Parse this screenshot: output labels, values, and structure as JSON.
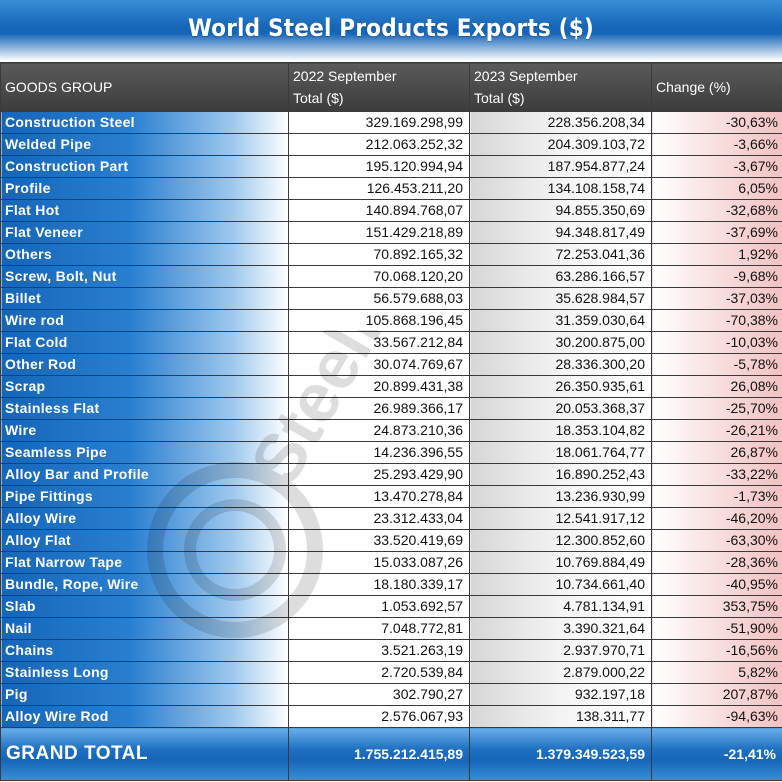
{
  "title": "World Steel Products Exports ($)",
  "header": {
    "goods": "GOODS GROUP",
    "col2_line1": "2022 September",
    "col2_line2": "Total ($)",
    "col3_line1": "2023 September",
    "col3_line2": "Total ($)",
    "change": "Change (%)"
  },
  "rows": [
    {
      "name": "Construction Steel",
      "v2022": "329.169.298,99",
      "v2023": "228.356.208,34",
      "change": "-30,63%"
    },
    {
      "name": "Welded Pipe",
      "v2022": "212.063.252,32",
      "v2023": "204.309.103,72",
      "change": "-3,66%"
    },
    {
      "name": "Construction Part",
      "v2022": "195.120.994,94",
      "v2023": "187.954.877,24",
      "change": "-3,67%"
    },
    {
      "name": "Profile",
      "v2022": "126.453.211,20",
      "v2023": "134.108.158,74",
      "change": "6,05%"
    },
    {
      "name": "Flat Hot",
      "v2022": "140.894.768,07",
      "v2023": "94.855.350,69",
      "change": "-32,68%"
    },
    {
      "name": "Flat Veneer",
      "v2022": "151.429.218,89",
      "v2023": "94.348.817,49",
      "change": "-37,69%"
    },
    {
      "name": "Others",
      "v2022": "70.892.165,32",
      "v2023": "72.253.041,36",
      "change": "1,92%"
    },
    {
      "name": "Screw, Bolt, Nut",
      "v2022": "70.068.120,20",
      "v2023": "63.286.166,57",
      "change": "-9,68%"
    },
    {
      "name": "Billet",
      "v2022": "56.579.688,03",
      "v2023": "35.628.984,57",
      "change": "-37,03%"
    },
    {
      "name": "Wire rod",
      "v2022": "105.868.196,45",
      "v2023": "31.359.030,64",
      "change": "-70,38%"
    },
    {
      "name": "Flat Cold",
      "v2022": "33.567.212,84",
      "v2023": "30.200.875,00",
      "change": "-10,03%"
    },
    {
      "name": "Other Rod",
      "v2022": "30.074.769,67",
      "v2023": "28.336.300,20",
      "change": "-5,78%"
    },
    {
      "name": "Scrap",
      "v2022": "20.899.431,38",
      "v2023": "26.350.935,61",
      "change": "26,08%"
    },
    {
      "name": "Stainless Flat",
      "v2022": "26.989.366,17",
      "v2023": "20.053.368,37",
      "change": "-25,70%"
    },
    {
      "name": "Wire",
      "v2022": "24.873.210,36",
      "v2023": "18.353.104,82",
      "change": "-26,21%"
    },
    {
      "name": "Seamless Pipe",
      "v2022": "14.236.396,55",
      "v2023": "18.061.764,77",
      "change": "26,87%"
    },
    {
      "name": "Alloy Bar and Profile",
      "v2022": "25.293.429,90",
      "v2023": "16.890.252,43",
      "change": "-33,22%"
    },
    {
      "name": "Pipe Fittings",
      "v2022": "13.470.278,84",
      "v2023": "13.236.930,99",
      "change": "-1,73%"
    },
    {
      "name": "Alloy Wire",
      "v2022": "23.312.433,04",
      "v2023": "12.541.917,12",
      "change": "-46,20%"
    },
    {
      "name": "Alloy Flat",
      "v2022": "33.520.419,69",
      "v2023": "12.300.852,60",
      "change": "-63,30%"
    },
    {
      "name": "Flat Narrow Tape",
      "v2022": "15.033.087,26",
      "v2023": "10.769.884,49",
      "change": "-28,36%"
    },
    {
      "name": "Bundle, Rope, Wire",
      "v2022": "18.180.339,17",
      "v2023": "10.734.661,40",
      "change": "-40,95%"
    },
    {
      "name": "Slab",
      "v2022": "1.053.692,57",
      "v2023": "4.781.134,91",
      "change": "353,75%"
    },
    {
      "name": "Nail",
      "v2022": "7.048.772,81",
      "v2023": "3.390.321,64",
      "change": "-51,90%"
    },
    {
      "name": "Chains",
      "v2022": "3.521.263,19",
      "v2023": "2.937.970,71",
      "change": "-16,56%"
    },
    {
      "name": "Stainless Long",
      "v2022": "2.720.539,84",
      "v2023": "2.879.000,22",
      "change": "5,82%"
    },
    {
      "name": "Pig",
      "v2022": "302.790,27",
      "v2023": "932.197,18",
      "change": "207,87%"
    },
    {
      "name": "Alloy Wire Rod",
      "v2022": "2.576.067,93",
      "v2023": "138.311,77",
      "change": "-94,63%"
    }
  ],
  "total": {
    "label": "GRAND TOTAL",
    "v2022": "1.755.212.415,89",
    "v2023": "1.379.349.523,59",
    "change": "-21,41%"
  },
  "colors": {
    "accent_blue": "#1565b8",
    "header_gray": "#4a4a4a",
    "change_tint": "#f1c2c2"
  },
  "icons": [
    "watermark-logo-icon"
  ]
}
